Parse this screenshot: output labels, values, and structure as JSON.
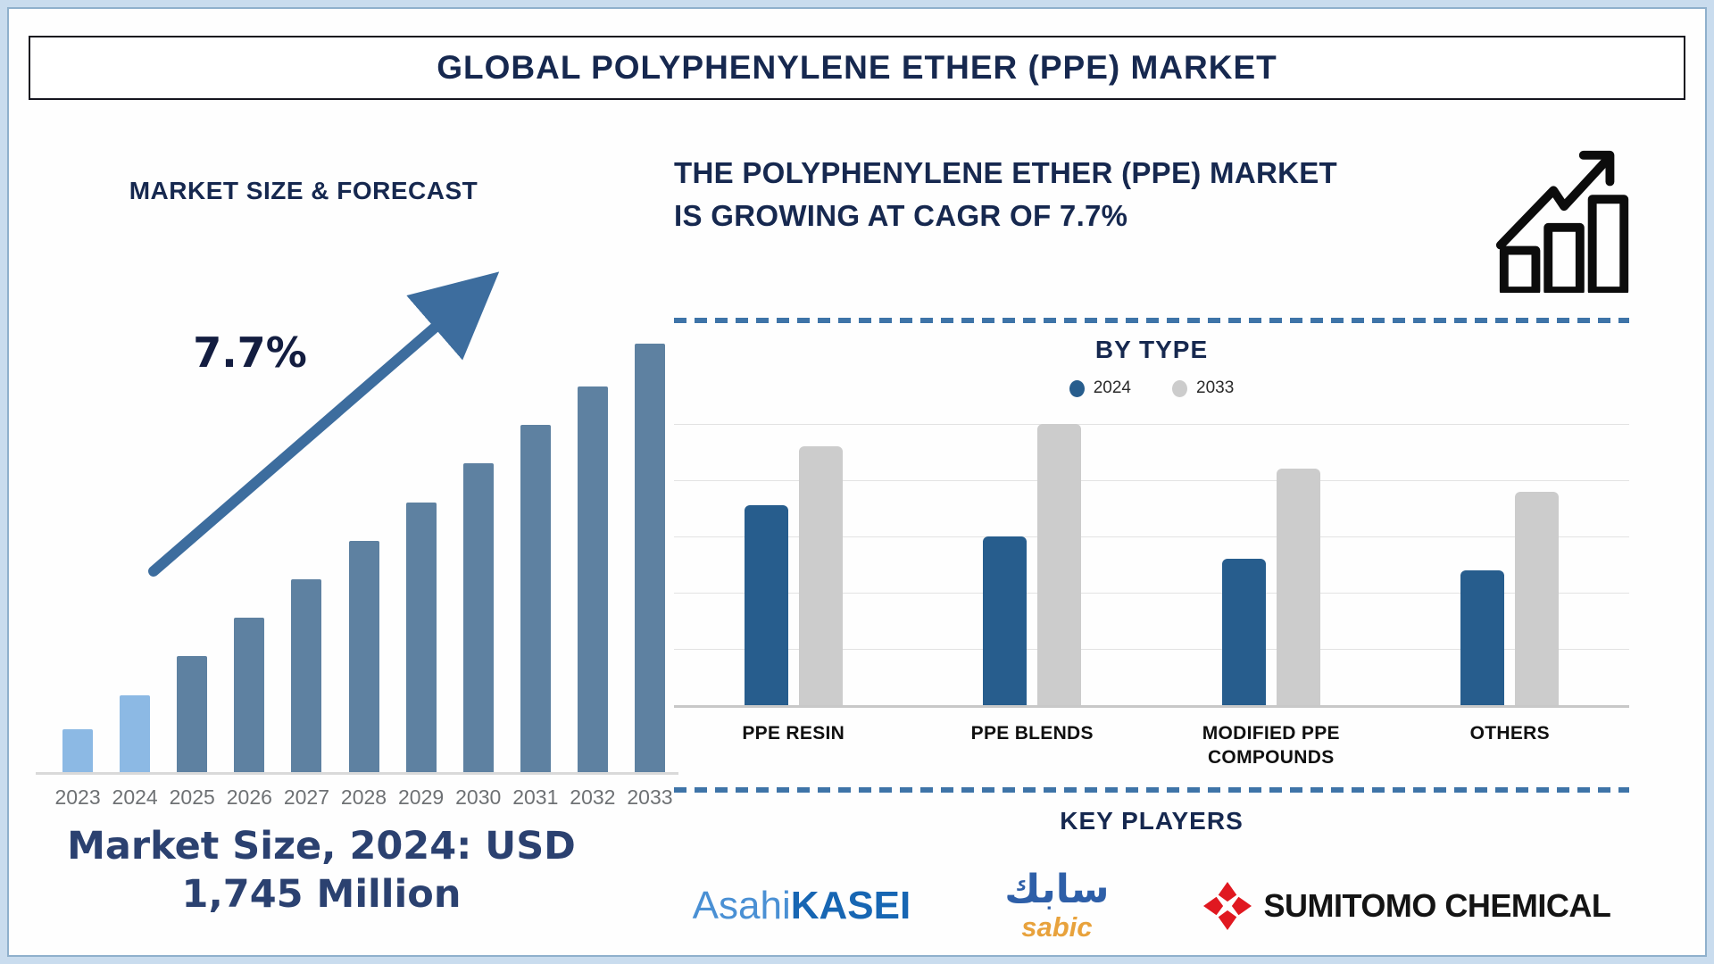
{
  "page": {
    "title": "GLOBAL POLYPHENYLENE ETHER (PPE) MARKET"
  },
  "left_panel": {
    "heading": "MARKET SIZE & FORECAST",
    "growth_label": "7.7%",
    "market_size_line1": "Market Size, 2024: USD",
    "market_size_line2": "1,745 Million"
  },
  "right_panel": {
    "heading_line1": "THE POLYPHENYLENE ETHER (PPE) MARKET",
    "heading_line2": "IS GROWING AT CAGR OF 7.7%",
    "growth_icon": "bar-chart-trending-up-icon",
    "by_type_heading": "BY TYPE",
    "key_players_heading": "KEY PLAYERS",
    "key_players": {
      "asahi": {
        "name": "Asahi Kasei",
        "regular": "Asahi",
        "bold": "KASEI"
      },
      "sabic": {
        "name": "SABIC",
        "arabic": "سابك",
        "latin": "sabic"
      },
      "sumitomo": {
        "name": "Sumitomo Chemical",
        "text": "SUMITOMO CHEMICAL",
        "icon": "red-diamond-flower-icon"
      }
    }
  },
  "colors": {
    "page_border": "#8fb0cc",
    "page_background": "#c9dcee",
    "heading_navy": "#16284f",
    "market_text_navy": "#2b4170",
    "forecast_bar_light": "#8cb9e4",
    "forecast_bar_dark": "#5e81a1",
    "forecast_arrow": "#3d6d9e",
    "bytype_2024": "#275d8d",
    "bytype_2033": "#cccccc",
    "divider_dashed": "#3e74a8",
    "year_label_gray": "#6e7174",
    "asahi_blue": "#1766b3",
    "sabic_blue": "#2e5fa8",
    "sabic_orange": "#e8a23c",
    "sumitomo_red": "#e01820"
  },
  "chart_data": [
    {
      "id": "market-size-forecast",
      "type": "bar",
      "title": "MARKET SIZE & FORECAST",
      "categories": [
        "2023",
        "2024",
        "2025",
        "2026",
        "2027",
        "2028",
        "2029",
        "2030",
        "2031",
        "2032",
        "2033"
      ],
      "values_relative_pct": [
        10,
        18,
        27,
        36,
        45,
        54,
        63,
        72,
        81,
        90,
        100
      ],
      "value_axis_note": "no numeric axis shown; heights are percent of the tallest (2033) bar",
      "known_values": {
        "2024_market_size_usd_million": 1745,
        "cagr_pct": 7.7
      },
      "annotations": [
        "7.7%",
        "Market Size, 2024: USD 1,745 Million"
      ],
      "highlight_first_n": 2,
      "bar_color_highlight": "#8cb9e4",
      "bar_color_default": "#5e81a1",
      "grid": false,
      "xlabel": "",
      "ylabel": ""
    },
    {
      "id": "ppe-market-by-type",
      "type": "bar",
      "title": "BY TYPE",
      "categories": [
        "PPE RESIN",
        "PPE BLENDS",
        "MODIFIED PPE COMPOUNDS",
        "OTHERS"
      ],
      "series": [
        {
          "name": "2024",
          "color": "#275d8d",
          "values_relative_pct": [
            71,
            60,
            52,
            48
          ]
        },
        {
          "name": "2033",
          "color": "#cccccc",
          "values_relative_pct": [
            92,
            100,
            84,
            76
          ]
        }
      ],
      "value_axis_note": "no numeric axis shown; heights are percent of plot height",
      "legend_position": "top",
      "grid": true,
      "xlabel": "",
      "ylabel": ""
    }
  ]
}
